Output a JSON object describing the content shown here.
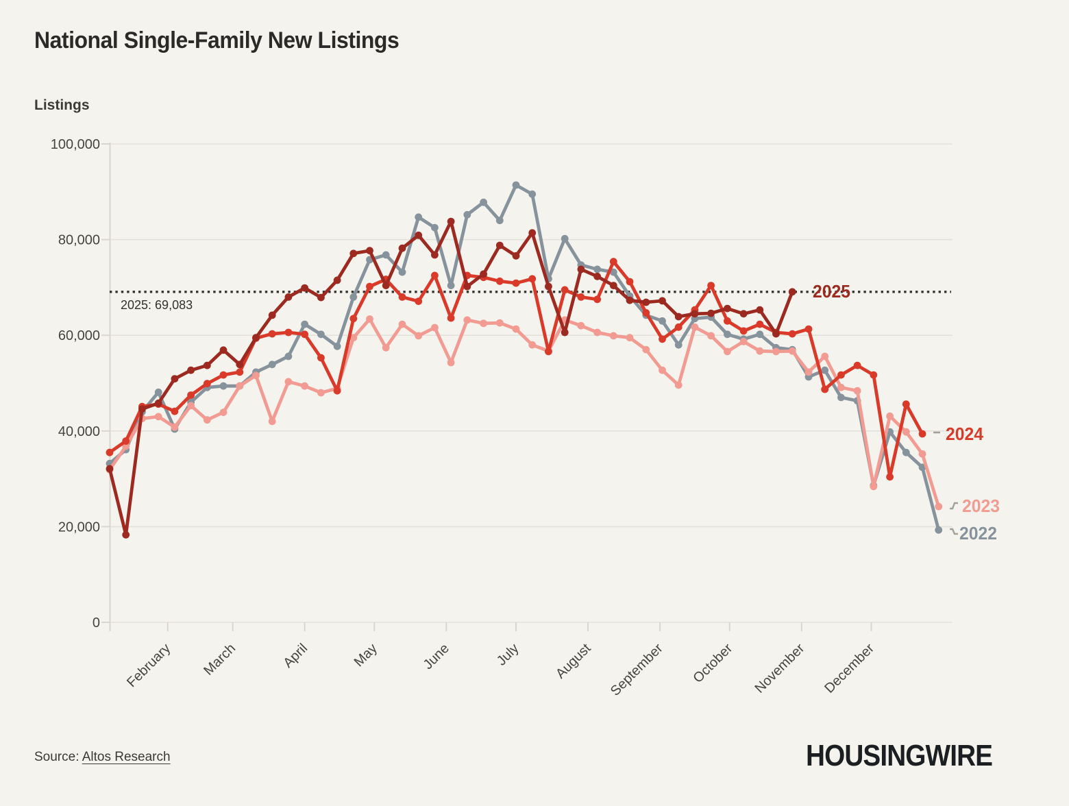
{
  "header": {
    "title": "National Single-Family New Listings"
  },
  "chart_data": {
    "type": "line",
    "title": "National Single-Family New Listings",
    "xlabel": "",
    "ylabel": "Listings",
    "x_unit": "week",
    "months": [
      "February",
      "March",
      "April",
      "May",
      "June",
      "July",
      "August",
      "September",
      "October",
      "November",
      "December"
    ],
    "ytick_values": [
      0,
      20000,
      40000,
      60000,
      80000,
      100000
    ],
    "ytick_labels": [
      "0",
      "20,000",
      "40,000",
      "60,000",
      "80,000",
      "100,000"
    ],
    "ylim": [
      0,
      100000
    ],
    "grid": "horizontal",
    "legend_position": "line-end-labels",
    "annotation": {
      "text": "2025: 69,083",
      "value": 69083
    },
    "series": [
      {
        "name": "2022",
        "color": "#86939d",
        "values": [
          33200,
          36100,
          44000,
          48100,
          40400,
          46000,
          49100,
          49400,
          49400,
          52300,
          53900,
          55600,
          62300,
          60200,
          57700,
          68000,
          75800,
          76800,
          73200,
          84700,
          82500,
          70400,
          85200,
          87800,
          84000,
          91400,
          89500,
          71800,
          80200,
          74700,
          73800,
          73200,
          68200,
          64200,
          63000,
          58000,
          63500,
          63800,
          60200,
          59200,
          60200,
          57400,
          57000,
          51300,
          52700,
          47000,
          46300,
          28600,
          39800,
          35500,
          32400,
          19300
        ]
      },
      {
        "name": "2023",
        "color": "#f29b92",
        "values": [
          31900,
          36800,
          42600,
          43000,
          40800,
          45300,
          42300,
          43900,
          49400,
          51600,
          42000,
          50300,
          49400,
          48000,
          48900,
          59500,
          63400,
          57400,
          62300,
          59900,
          61600,
          54300,
          63200,
          62500,
          62600,
          61300,
          58000,
          56700,
          63200,
          62000,
          60600,
          59900,
          59500,
          57000,
          52700,
          49600,
          61700,
          59900,
          56600,
          58700,
          56700,
          56600,
          56700,
          52300,
          55600,
          49100,
          48400,
          28400,
          43100,
          39800,
          35200,
          24200
        ]
      },
      {
        "name": "2024",
        "color": "#d93a2a",
        "values": [
          35500,
          37900,
          45100,
          45600,
          44100,
          47500,
          49900,
          51700,
          52300,
          59400,
          60300,
          60600,
          60200,
          55300,
          48400,
          63500,
          70200,
          71700,
          68000,
          67100,
          72500,
          63600,
          72500,
          72100,
          71300,
          70900,
          71800,
          56600,
          69500,
          68000,
          67500,
          75400,
          71200,
          64700,
          59200,
          61700,
          65300,
          70400,
          63000,
          60900,
          62300,
          60600,
          60300,
          61300,
          48700,
          51700,
          53700,
          51700,
          30400,
          45600,
          39400
        ]
      },
      {
        "name": "2025",
        "color": "#9c2a20",
        "values": [
          32100,
          18300,
          44600,
          45800,
          50900,
          52700,
          53700,
          56900,
          53900,
          59500,
          64200,
          68000,
          69900,
          67900,
          71500,
          77100,
          77700,
          70400,
          78200,
          80900,
          76800,
          83800,
          70200,
          72800,
          78800,
          76600,
          81400,
          70200,
          60600,
          73800,
          72300,
          70400,
          67300,
          66900,
          67200,
          63900,
          64500,
          64600,
          65600,
          64500,
          65300,
          60300,
          69083
        ]
      }
    ]
  },
  "source": {
    "prefix": "Source: ",
    "link": "Altos Research"
  },
  "logo": {
    "text": "HOUSINGWIRE"
  },
  "colors": {
    "background": "#f5f3ed",
    "gridline": "#e4e1da",
    "axis": "#d9d6cf",
    "tick_text": "#454440",
    "dotted_line": "#34332e",
    "leader": "#a3a09a"
  }
}
